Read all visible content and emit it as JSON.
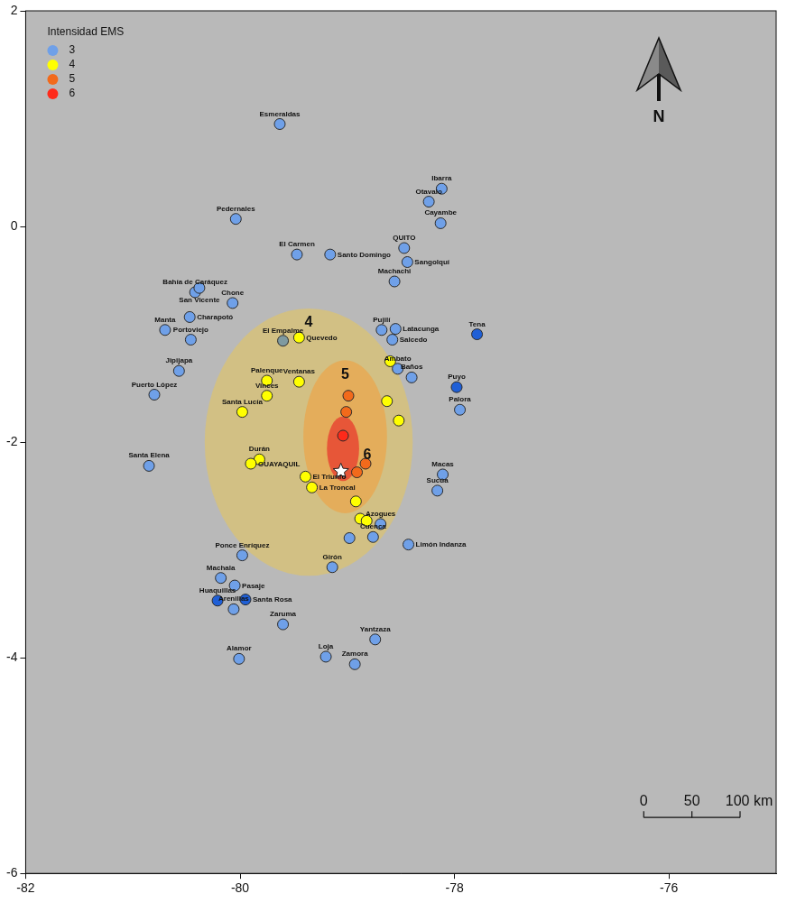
{
  "chart_data": {
    "type": "scatter",
    "legend_title": "Intensidad EMS",
    "legend": "upper left",
    "grid": false,
    "xlim": [
      -82,
      -75
    ],
    "ylim": [
      -6,
      2
    ],
    "xticks": [
      -82,
      -80,
      -78,
      -76
    ],
    "yticks": [
      -6,
      -4,
      -2,
      0,
      2
    ],
    "series": [
      {
        "name": "3",
        "color": "#6fa0e8",
        "marker": "circle",
        "x": [
          -79.63,
          -80.04,
          -79.47,
          -79.16,
          -80.42,
          -80.38,
          -80.07,
          -80.47,
          -80.7,
          -80.46,
          -80.57,
          -80.8,
          -80.85,
          -79.6,
          -78.47,
          -78.44,
          -78.24,
          -78.12,
          -78.13,
          -78.56,
          -78.68,
          -78.55,
          -78.58,
          -78.53,
          -78.4,
          -77.79,
          -77.98,
          -77.95,
          -78.11,
          -78.16,
          -78.69,
          -78.76,
          -78.98,
          -78.43,
          -79.14,
          -79.98,
          -80.18,
          -80.05,
          -80.21,
          -79.95,
          -80.06,
          -79.6,
          -80.01,
          -79.2,
          -78.93,
          -78.74
        ],
        "y": [
          0.95,
          0.07,
          -0.26,
          -0.26,
          -0.61,
          -0.57,
          -0.71,
          -0.84,
          -0.96,
          -1.05,
          -1.34,
          -1.56,
          -2.22,
          -1.06,
          -0.2,
          -0.33,
          0.23,
          0.35,
          0.03,
          -0.51,
          -0.96,
          -0.95,
          -1.05,
          -1.32,
          -1.4,
          -1.0,
          -1.49,
          -1.7,
          -2.3,
          -2.45,
          -2.76,
          -2.88,
          -2.89,
          -2.95,
          -3.16,
          -3.05,
          -3.26,
          -3.33,
          -3.47,
          -3.46,
          -3.55,
          -3.69,
          -4.01,
          -3.99,
          -4.06,
          -3.83
        ],
        "labels": [
          "Esmeraldas",
          "Pedernales",
          "El Carmen",
          "Santo Domingo",
          "Bahía de Caráquez",
          "San Vicente",
          "Chone",
          "Charapotó",
          "Manta",
          "Portoviejo",
          "Jipijapa",
          "Puerto López",
          "Santa Elena",
          "El Empalme",
          "QUITO",
          "Sangolquí",
          "Otavalo",
          "Ibarra",
          "Cayambe",
          "Machachi",
          "Pujilí",
          "Latacunga",
          "Salcedo",
          "Ambato",
          "Baños",
          "Tena",
          "Puyo",
          "Palora",
          "Macas",
          "Sucúa",
          "Azogues",
          "Cuenca",
          null,
          "Limón Indanza",
          "Girón",
          "Ponce Enríquez",
          "Machala",
          "Pasaje",
          "Huaquillas",
          "Santa Rosa",
          "Arenillas",
          "Zaruma",
          "Alamor",
          "Loja",
          "Zamora",
          "Yantzaza"
        ],
        "colors": [
          "#6fa0e8",
          "#6fa0e8",
          "#6fa0e8",
          "#6fa0e8",
          "#6fa0e8",
          "#6fa0e8",
          "#6fa0e8",
          "#6fa0e8",
          "#6fa0e8",
          "#6fa0e8",
          "#6fa0e8",
          "#6fa0e8",
          "#6fa0e8",
          "#7f9aa0",
          "#6fa0e8",
          "#6fa0e8",
          "#6fa0e8",
          "#6fa0e8",
          "#6fa0e8",
          "#6fa0e8",
          "#6fa0e8",
          "#6fa0e8",
          "#6fa0e8",
          "#6fa0e8",
          "#6fa0e8",
          "#1f5fd6",
          "#1f5fd6",
          "#6fa0e8",
          "#6fa0e8",
          "#6fa0e8",
          "#6fa0e8",
          "#6fa0e8",
          "#6fa0e8",
          "#6fa0e8",
          "#6fa0e8",
          "#6fa0e8",
          "#6fa0e8",
          "#6fa0e8",
          "#1f5fd6",
          "#1f5fd6",
          "#6fa0e8",
          "#6fa0e8",
          "#6fa0e8",
          "#6fa0e8",
          "#6fa0e8",
          "#6fa0e8"
        ]
      },
      {
        "name": "4",
        "color": "#ffff00",
        "marker": "circle",
        "x": [
          -79.45,
          -79.75,
          -79.45,
          -79.75,
          -79.98,
          -79.82,
          -79.9,
          -79.39,
          -79.33,
          -78.63,
          -78.52,
          -78.6,
          -78.92,
          -78.88,
          -78.82
        ],
        "y": [
          -1.03,
          -1.43,
          -1.44,
          -1.57,
          -1.72,
          -2.16,
          -2.2,
          -2.32,
          -2.42,
          -1.62,
          -1.8,
          -1.25,
          -2.55,
          -2.71,
          -2.73
        ],
        "labels": [
          "Quevedo",
          "Palenque",
          "Ventanas",
          "Vinces",
          "Santa Lucía",
          "Durán",
          "GUAYAQUIL",
          "El Triunfo",
          "La Troncal",
          null,
          null,
          null,
          null,
          null,
          null
        ]
      },
      {
        "name": "5",
        "color": "#f26a1b",
        "marker": "circle",
        "x": [
          -78.99,
          -79.01,
          -78.83,
          -78.91
        ],
        "y": [
          -1.57,
          -1.72,
          -2.2,
          -2.28
        ],
        "labels": [
          null,
          null,
          null,
          null
        ]
      },
      {
        "name": "6",
        "color": "#ff2a1a",
        "marker": "circle",
        "x": [
          -79.04
        ],
        "y": [
          -1.94
        ],
        "labels": [
          null
        ]
      }
    ],
    "zones": [
      {
        "label": "4",
        "color": "#e8c65a",
        "center": [
          -79.36,
          -2.0
        ],
        "radii": [
          0.97,
          1.24
        ]
      },
      {
        "label": "5",
        "color": "#f0a040",
        "center": [
          -79.02,
          -1.95
        ],
        "radii": [
          0.39,
          0.71
        ]
      },
      {
        "label": "6",
        "color": "#e8302a",
        "center": [
          -79.04,
          -2.06
        ],
        "radii": [
          0.15,
          0.3
        ]
      }
    ],
    "epicenter": {
      "x": -79.06,
      "y": -2.27,
      "marker": "star"
    },
    "north_arrow": "N",
    "scale_bar": {
      "ticks": [
        0,
        50,
        {
          "value": 100,
          "label": "100 km"
        }
      ]
    }
  }
}
